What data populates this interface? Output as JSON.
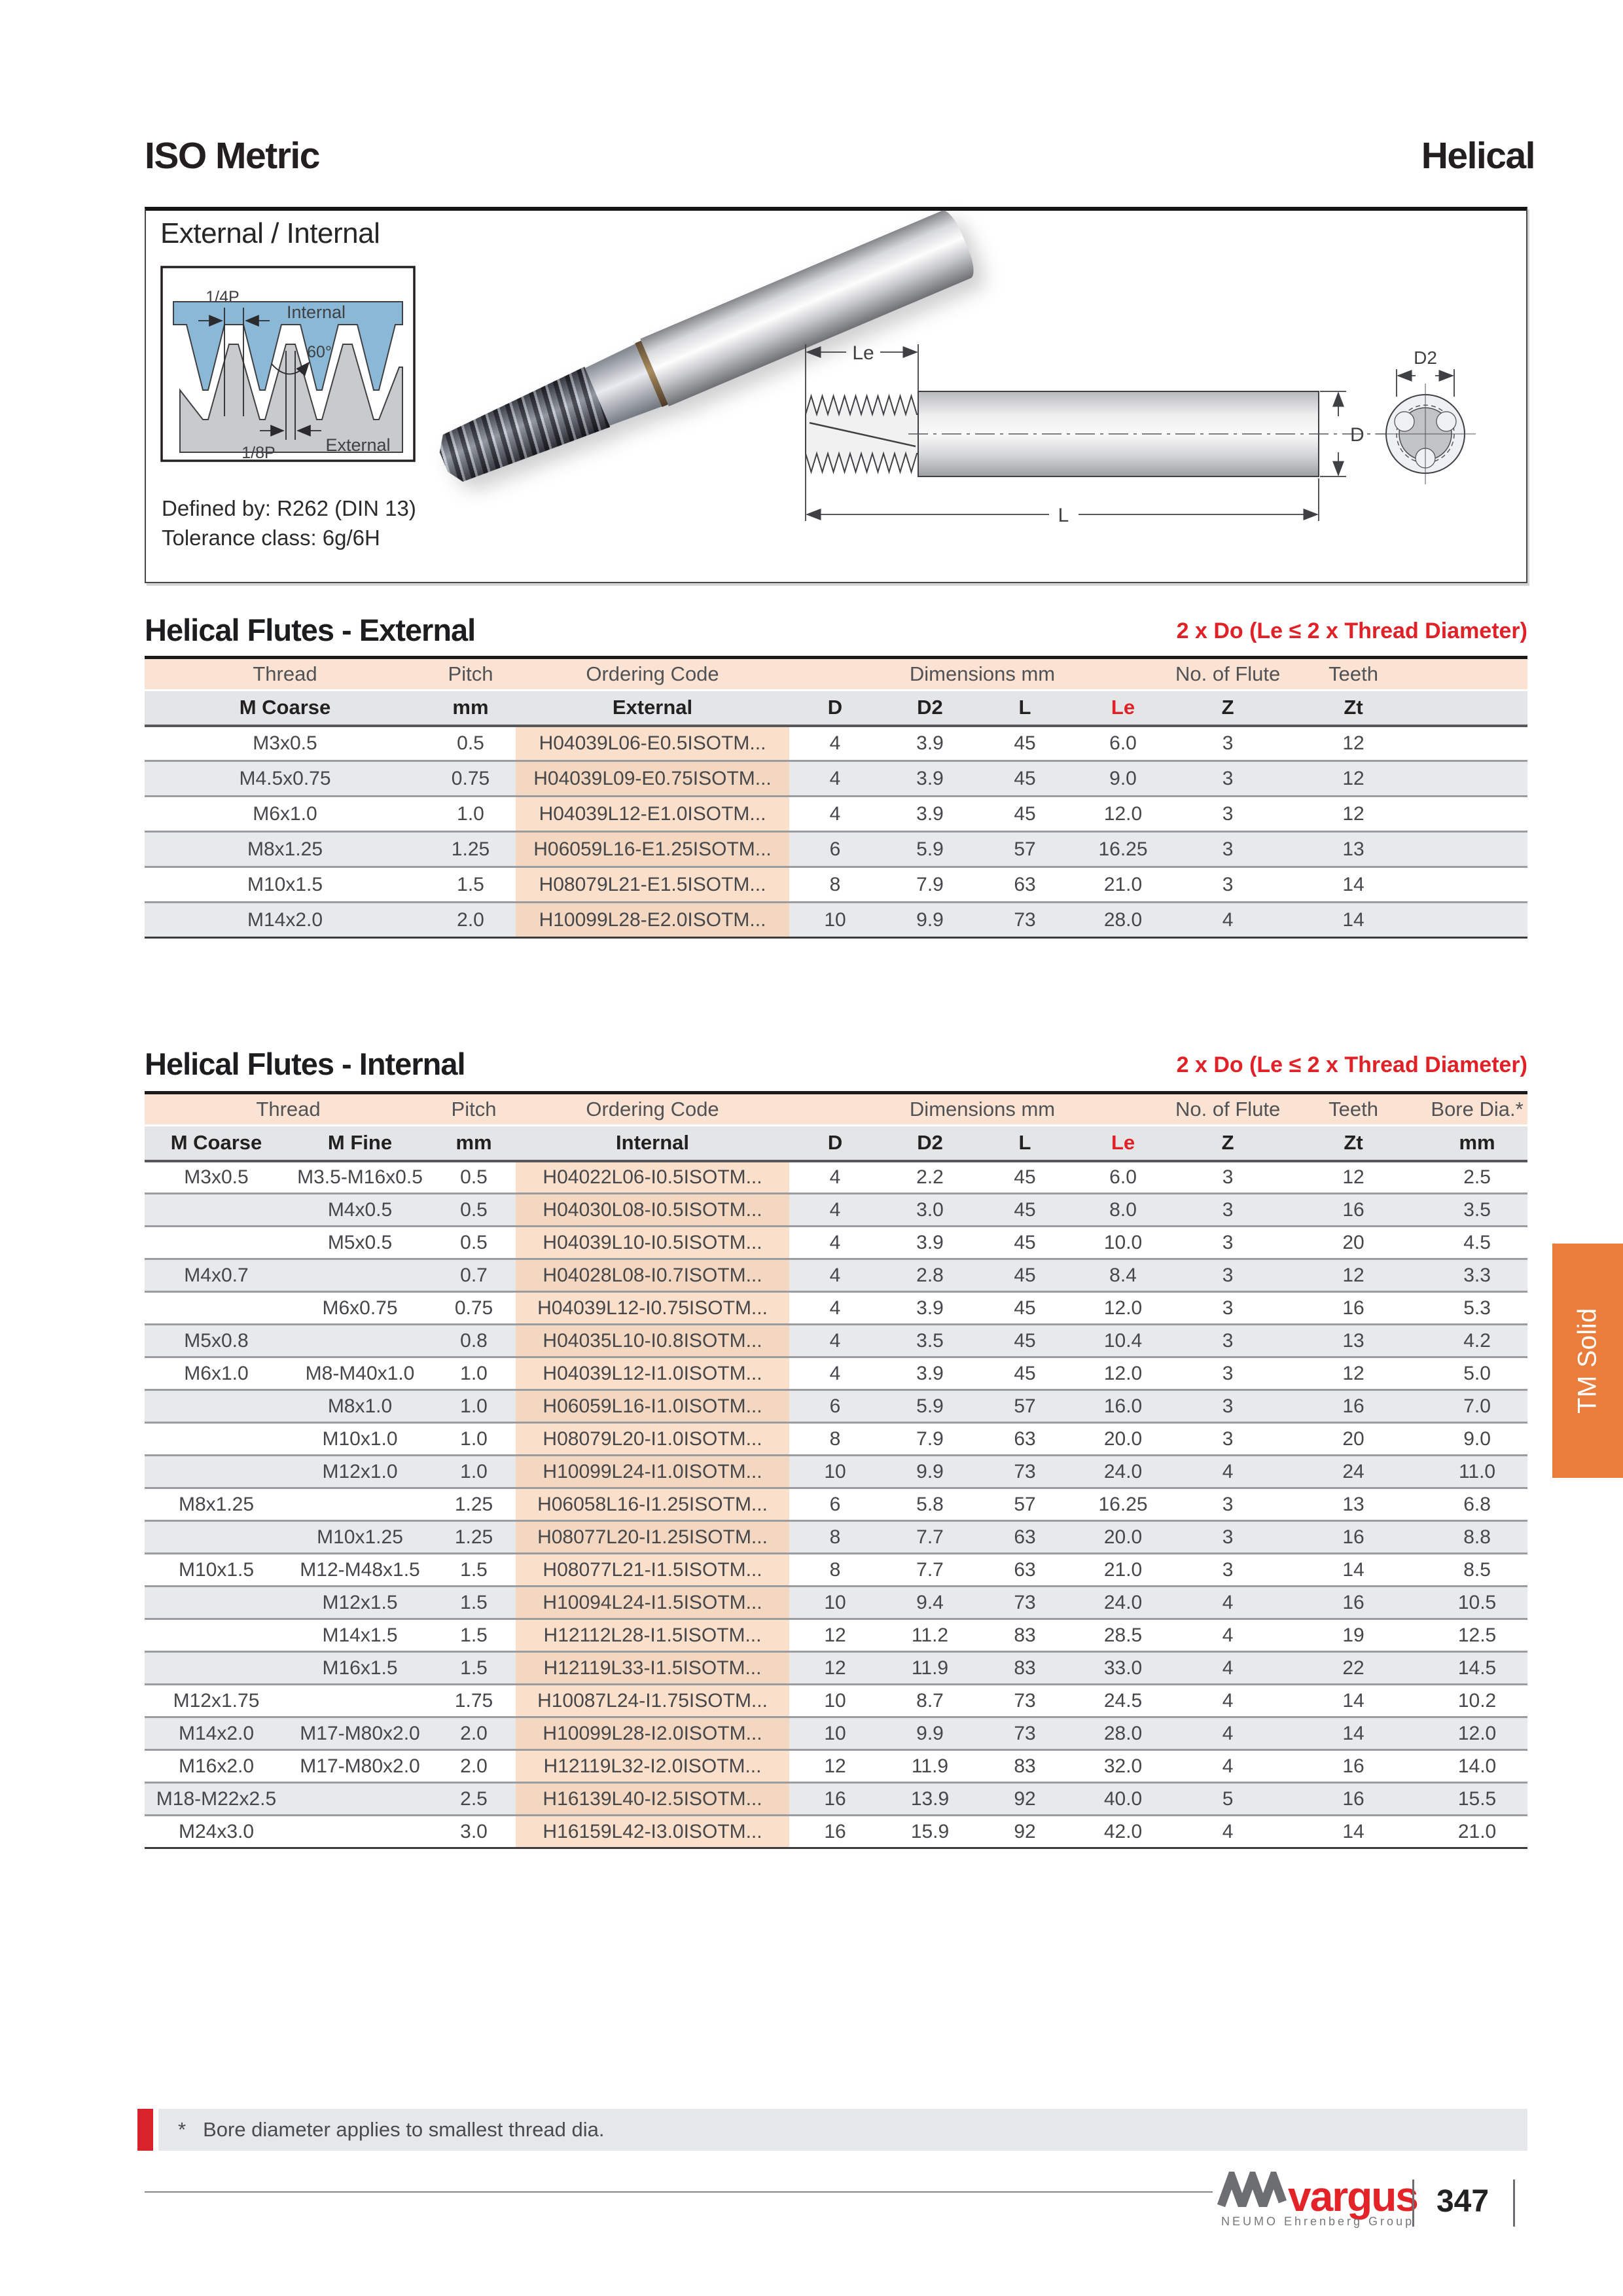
{
  "masthead": {
    "left": "ISO Metric",
    "right": "Helical"
  },
  "overview": {
    "subtitle": "External / Internal",
    "profile": {
      "quarter_p": "1/4P",
      "internal": "Internal",
      "angle": "60°",
      "eighth_p": "1/8P",
      "external": "External"
    },
    "defined_by": "Defined by: R262 (DIN 13)",
    "tolerance": "Tolerance class: 6g/6H",
    "dims": {
      "le": "Le",
      "l": "L",
      "d": "D",
      "d2": "D2"
    }
  },
  "external_table": {
    "title": "Helical Flutes - External",
    "note": "2 x Do (Le ≤ 2 x Thread Diameter)",
    "header1": [
      "Thread",
      "Pitch",
      "Ordering Code",
      "Dimensions mm",
      "No. of Flutes",
      "Teeth"
    ],
    "header2": [
      "M Coarse",
      "mm",
      "External",
      "D",
      "D2",
      "L",
      "Le",
      "Z",
      "Zt"
    ],
    "rows": [
      [
        "M3x0.5",
        "0.5",
        "H04039L06-E0.5ISOTM...",
        "4",
        "3.9",
        "45",
        "6.0",
        "3",
        "12"
      ],
      [
        "M4.5x0.75",
        "0.75",
        "H04039L09-E0.75ISOTM...",
        "4",
        "3.9",
        "45",
        "9.0",
        "3",
        "12"
      ],
      [
        "M6x1.0",
        "1.0",
        "H04039L12-E1.0ISOTM...",
        "4",
        "3.9",
        "45",
        "12.0",
        "3",
        "12"
      ],
      [
        "M8x1.25",
        "1.25",
        "H06059L16-E1.25ISOTM...",
        "6",
        "5.9",
        "57",
        "16.25",
        "3",
        "13"
      ],
      [
        "M10x1.5",
        "1.5",
        "H08079L21-E1.5ISOTM...",
        "8",
        "7.9",
        "63",
        "21.0",
        "3",
        "14"
      ],
      [
        "M14x2.0",
        "2.0",
        "H10099L28-E2.0ISOTM...",
        "10",
        "9.9",
        "73",
        "28.0",
        "4",
        "14"
      ]
    ]
  },
  "internal_table": {
    "title": "Helical Flutes - Internal",
    "note": "2 x Do (Le ≤ 2 x Thread Diameter)",
    "header1": [
      "Thread",
      "Pitch",
      "Ordering Code",
      "Dimensions mm",
      "No. of Flutes",
      "Teeth",
      "Bore Dia.*"
    ],
    "header2": [
      "M Coarse",
      "M Fine",
      "mm",
      "Internal",
      "D",
      "D2",
      "L",
      "Le",
      "Z",
      "Zt",
      "mm"
    ],
    "rows": [
      [
        "M3x0.5",
        "M3.5-M16x0.5",
        "0.5",
        "H04022L06-I0.5ISOTM...",
        "4",
        "2.2",
        "45",
        "6.0",
        "3",
        "12",
        "2.5"
      ],
      [
        "",
        "M4x0.5",
        "0.5",
        "H04030L08-I0.5ISOTM...",
        "4",
        "3.0",
        "45",
        "8.0",
        "3",
        "16",
        "3.5"
      ],
      [
        "",
        "M5x0.5",
        "0.5",
        "H04039L10-I0.5ISOTM...",
        "4",
        "3.9",
        "45",
        "10.0",
        "3",
        "20",
        "4.5"
      ],
      [
        "M4x0.7",
        "",
        "0.7",
        "H04028L08-I0.7ISOTM...",
        "4",
        "2.8",
        "45",
        "8.4",
        "3",
        "12",
        "3.3"
      ],
      [
        "",
        "M6x0.75",
        "0.75",
        "H04039L12-I0.75ISOTM...",
        "4",
        "3.9",
        "45",
        "12.0",
        "3",
        "16",
        "5.3"
      ],
      [
        "M5x0.8",
        "",
        "0.8",
        "H04035L10-I0.8ISOTM...",
        "4",
        "3.5",
        "45",
        "10.4",
        "3",
        "13",
        "4.2"
      ],
      [
        "M6x1.0",
        "M8-M40x1.0",
        "1.0",
        "H04039L12-I1.0ISOTM...",
        "4",
        "3.9",
        "45",
        "12.0",
        "3",
        "12",
        "5.0"
      ],
      [
        "",
        "M8x1.0",
        "1.0",
        "H06059L16-I1.0ISOTM...",
        "6",
        "5.9",
        "57",
        "16.0",
        "3",
        "16",
        "7.0"
      ],
      [
        "",
        "M10x1.0",
        "1.0",
        "H08079L20-I1.0ISOTM...",
        "8",
        "7.9",
        "63",
        "20.0",
        "3",
        "20",
        "9.0"
      ],
      [
        "",
        "M12x1.0",
        "1.0",
        "H10099L24-I1.0ISOTM...",
        "10",
        "9.9",
        "73",
        "24.0",
        "4",
        "24",
        "11.0"
      ],
      [
        "M8x1.25",
        "",
        "1.25",
        "H06058L16-I1.25ISOTM...",
        "6",
        "5.8",
        "57",
        "16.25",
        "3",
        "13",
        "6.8"
      ],
      [
        "",
        "M10x1.25",
        "1.25",
        "H08077L20-I1.25ISOTM...",
        "8",
        "7.7",
        "63",
        "20.0",
        "3",
        "16",
        "8.8"
      ],
      [
        "M10x1.5",
        "M12-M48x1.5",
        "1.5",
        "H08077L21-I1.5ISOTM...",
        "8",
        "7.7",
        "63",
        "21.0",
        "3",
        "14",
        "8.5"
      ],
      [
        "",
        "M12x1.5",
        "1.5",
        "H10094L24-I1.5ISOTM...",
        "10",
        "9.4",
        "73",
        "24.0",
        "4",
        "16",
        "10.5"
      ],
      [
        "",
        "M14x1.5",
        "1.5",
        "H12112L28-I1.5ISOTM...",
        "12",
        "11.2",
        "83",
        "28.5",
        "4",
        "19",
        "12.5"
      ],
      [
        "",
        "M16x1.5",
        "1.5",
        "H12119L33-I1.5ISOTM...",
        "12",
        "11.9",
        "83",
        "33.0",
        "4",
        "22",
        "14.5"
      ],
      [
        "M12x1.75",
        "",
        "1.75",
        "H10087L24-I1.75ISOTM...",
        "10",
        "8.7",
        "73",
        "24.5",
        "4",
        "14",
        "10.2"
      ],
      [
        "M14x2.0",
        "M17-M80x2.0",
        "2.0",
        "H10099L28-I2.0ISOTM...",
        "10",
        "9.9",
        "73",
        "28.0",
        "4",
        "14",
        "12.0"
      ],
      [
        "M16x2.0",
        "M17-M80x2.0",
        "2.0",
        "H12119L32-I2.0ISOTM...",
        "12",
        "11.9",
        "83",
        "32.0",
        "4",
        "16",
        "14.0"
      ],
      [
        "M18-M22x2.5",
        "",
        "2.5",
        "H16139L40-I2.5ISOTM...",
        "16",
        "13.9",
        "92",
        "40.0",
        "5",
        "16",
        "15.5"
      ],
      [
        "M24x3.0",
        "",
        "3.0",
        "H16159L42-I3.0ISOTM...",
        "16",
        "15.9",
        "92",
        "42.0",
        "4",
        "14",
        "21.0"
      ]
    ]
  },
  "footnote": {
    "star": "*",
    "text": "Bore diameter applies to smallest thread dia."
  },
  "footer": {
    "brand": "vargus",
    "brand_sub": "NEUMO Ehrenberg Group",
    "page_number": "347"
  },
  "side_tab": {
    "label": "TM Solid"
  },
  "colors": {
    "accent_red": "#e02127",
    "tab_orange": "#eb7d3c",
    "header_peach": "#fbe3d3",
    "row_gray": "#e8e9eb",
    "code_peach": "#fadfca"
  }
}
